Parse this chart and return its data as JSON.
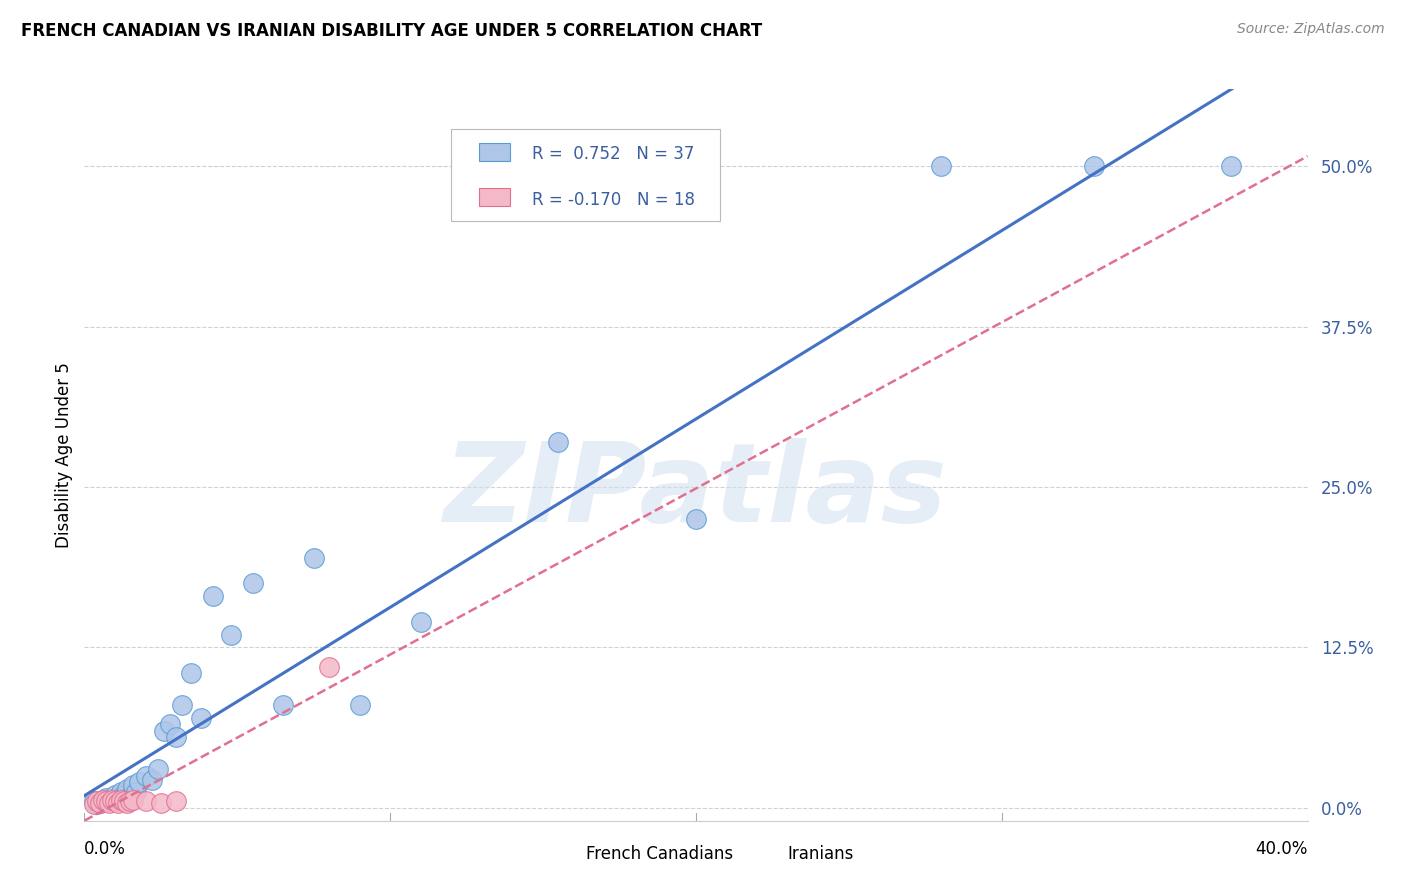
{
  "title": "FRENCH CANADIAN VS IRANIAN DISABILITY AGE UNDER 5 CORRELATION CHART",
  "source": "Source: ZipAtlas.com",
  "ylabel": "Disability Age Under 5",
  "watermark": "ZIPatlas",
  "ytick_labels": [
    "0.0%",
    "12.5%",
    "25.0%",
    "37.5%",
    "50.0%"
  ],
  "ytick_values": [
    0.0,
    0.125,
    0.25,
    0.375,
    0.5
  ],
  "xmin": 0.0,
  "xmax": 0.4,
  "ymin": -0.01,
  "ymax": 0.56,
  "fc_color": "#aec6e8",
  "fc_edge_color": "#5b9bd5",
  "ir_color": "#f4b8c8",
  "ir_edge_color": "#e07090",
  "trend_fc_color": "#4472c4",
  "trend_ir_color": "#e07090",
  "french_canadians_x": [
    0.003,
    0.004,
    0.005,
    0.006,
    0.007,
    0.008,
    0.009,
    0.01,
    0.011,
    0.012,
    0.013,
    0.014,
    0.015,
    0.016,
    0.017,
    0.018,
    0.02,
    0.022,
    0.024,
    0.026,
    0.028,
    0.03,
    0.032,
    0.035,
    0.038,
    0.042,
    0.048,
    0.055,
    0.065,
    0.075,
    0.09,
    0.11,
    0.155,
    0.2,
    0.28,
    0.33,
    0.375
  ],
  "french_canadians_y": [
    0.005,
    0.003,
    0.004,
    0.006,
    0.008,
    0.005,
    0.007,
    0.01,
    0.008,
    0.012,
    0.01,
    0.015,
    0.009,
    0.018,
    0.012,
    0.02,
    0.025,
    0.022,
    0.03,
    0.06,
    0.065,
    0.055,
    0.08,
    0.105,
    0.07,
    0.165,
    0.135,
    0.175,
    0.08,
    0.195,
    0.08,
    0.145,
    0.285,
    0.225,
    0.5,
    0.5,
    0.5
  ],
  "iranians_x": [
    0.003,
    0.004,
    0.005,
    0.006,
    0.007,
    0.008,
    0.009,
    0.01,
    0.011,
    0.012,
    0.013,
    0.014,
    0.015,
    0.016,
    0.02,
    0.025,
    0.03,
    0.08
  ],
  "iranians_y": [
    0.003,
    0.005,
    0.004,
    0.006,
    0.005,
    0.004,
    0.006,
    0.005,
    0.004,
    0.006,
    0.005,
    0.004,
    0.005,
    0.006,
    0.005,
    0.004,
    0.005,
    0.11
  ]
}
